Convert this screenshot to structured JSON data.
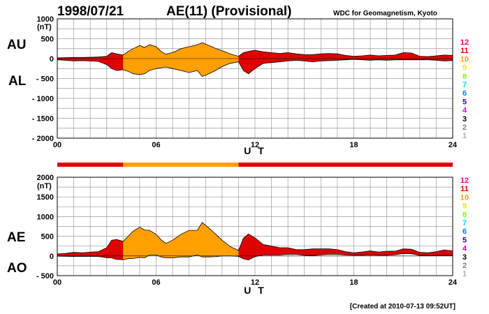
{
  "header": {
    "date": "1998/07/21",
    "title": "AE(11) (Provisional)",
    "source": "WDC for Geomagnetism, Kyoto"
  },
  "footer": {
    "created": "[Created at 2010-07-13 09:52UT]"
  },
  "legend_colors": {
    "12": "#ff0080",
    "11": "#e00000",
    "10": "#ffa000",
    "9": "#e8e800",
    "8": "#80ff00",
    "7": "#00e0e0",
    "6": "#0080ff",
    "5": "#3000c0",
    "4": "#e000e0",
    "3": "#000000",
    "2": "#808080",
    "1": "#b0b0b0"
  },
  "chart_data": [
    {
      "type": "area",
      "panel": "AU/AL",
      "labels": {
        "upper": "AU",
        "lower": "AL",
        "unit": "(nT)"
      },
      "xlabel": "U T",
      "xlim": [
        0,
        24
      ],
      "xticks": [
        "00",
        "06",
        "12",
        "18",
        "24"
      ],
      "ylim": [
        -2000,
        1000
      ],
      "yticks": [
        "1000",
        "500",
        "0",
        "- 500",
        "- 1000",
        "- 1500",
        "- 2000"
      ],
      "legend": [
        "12",
        "11",
        "10",
        "9",
        "8",
        "7",
        "6",
        "5",
        "4",
        "3",
        "2",
        "1"
      ],
      "series": [
        {
          "x": [
            0,
            0.5,
            1,
            1.5,
            2,
            2.5,
            3,
            3.3,
            3.6,
            4,
            4.3,
            4.6,
            5,
            5.3,
            5.6,
            6,
            6.3,
            6.6,
            7,
            7.5,
            8,
            8.5,
            8.8,
            9.2,
            9.6,
            10,
            10.5,
            11,
            11.3,
            11.6,
            12,
            12.5,
            13,
            13.5,
            14,
            14.5,
            15,
            15.5,
            16,
            16.5,
            17,
            17.5,
            18,
            18.5,
            19,
            19.5,
            20,
            20.5,
            21,
            21.5,
            22,
            22.5,
            23,
            23.5,
            24
          ],
          "upper": [
            20,
            25,
            30,
            30,
            35,
            40,
            60,
            150,
            120,
            90,
            180,
            250,
            330,
            280,
            350,
            300,
            180,
            110,
            150,
            250,
            300,
            350,
            400,
            330,
            260,
            200,
            120,
            60,
            150,
            180,
            210,
            170,
            150,
            130,
            150,
            120,
            100,
            100,
            120,
            130,
            120,
            80,
            60,
            70,
            90,
            70,
            80,
            90,
            150,
            140,
            60,
            50,
            70,
            90,
            80
          ],
          "lower": [
            -30,
            -40,
            -60,
            -50,
            -60,
            -70,
            -150,
            -250,
            -300,
            -280,
            -320,
            -380,
            -400,
            -380,
            -300,
            -250,
            -230,
            -210,
            -250,
            -300,
            -350,
            -300,
            -450,
            -380,
            -300,
            -200,
            -120,
            -80,
            -300,
            -380,
            -250,
            -120,
            -100,
            -80,
            -60,
            -40,
            -60,
            -80,
            -60,
            -50,
            -40,
            -30,
            -20,
            -30,
            -40,
            -30,
            -40,
            -30,
            -30,
            -30,
            -30,
            -30,
            -40,
            -60,
            -50
          ]
        }
      ]
    },
    {
      "type": "area",
      "panel": "AE/AO",
      "labels": {
        "upper": "AE",
        "lower": "AO",
        "unit": "(nT)"
      },
      "xlabel": "U T",
      "xlim": [
        0,
        24
      ],
      "xticks": [
        "00",
        "06",
        "12",
        "18",
        "24"
      ],
      "ylim": [
        -500,
        2000
      ],
      "yticks": [
        "2000",
        "1500",
        "1000",
        "500",
        "0",
        "- 500"
      ],
      "legend": [
        "12",
        "11",
        "10",
        "9",
        "8",
        "7",
        "6",
        "5",
        "4",
        "3",
        "2",
        "1"
      ],
      "series": [
        {
          "x": [
            0,
            0.5,
            1,
            1.5,
            2,
            2.5,
            3,
            3.3,
            3.6,
            4,
            4.3,
            4.6,
            5,
            5.3,
            5.6,
            6,
            6.3,
            6.6,
            7,
            7.5,
            8,
            8.5,
            8.8,
            9.2,
            9.6,
            10,
            10.5,
            11,
            11.3,
            11.6,
            12,
            12.5,
            13,
            13.5,
            14,
            14.5,
            15,
            15.5,
            16,
            16.5,
            17,
            17.5,
            18,
            18.5,
            19,
            19.5,
            20,
            20.5,
            21,
            21.5,
            22,
            22.5,
            23,
            23.5,
            24
          ],
          "upper": [
            50,
            65,
            90,
            80,
            95,
            110,
            210,
            400,
            420,
            370,
            500,
            630,
            730,
            660,
            650,
            550,
            410,
            320,
            400,
            550,
            650,
            650,
            850,
            710,
            560,
            400,
            240,
            140,
            450,
            560,
            460,
            290,
            250,
            210,
            210,
            160,
            160,
            180,
            180,
            180,
            160,
            110,
            80,
            100,
            130,
            100,
            120,
            120,
            180,
            170,
            90,
            80,
            110,
            150,
            130
          ],
          "lower": [
            -5,
            -8,
            -15,
            -10,
            -12,
            -15,
            -45,
            -50,
            -90,
            -95,
            -70,
            -65,
            -35,
            -50,
            25,
            25,
            -25,
            -50,
            -50,
            -25,
            -25,
            25,
            -25,
            -25,
            -20,
            0,
            0,
            -10,
            -75,
            -100,
            -20,
            25,
            25,
            25,
            45,
            40,
            20,
            10,
            30,
            40,
            40,
            25,
            20,
            20,
            25,
            20,
            20,
            30,
            60,
            55,
            15,
            10,
            15,
            15,
            15
          ]
        }
      ]
    }
  ],
  "status_bar": {
    "segments": [
      {
        "from": 0,
        "to": 4,
        "level": "11"
      },
      {
        "from": 4,
        "to": 11,
        "level": "10"
      },
      {
        "from": 11,
        "to": 24,
        "level": "11"
      }
    ]
  },
  "color_segments": [
    {
      "from": 0,
      "to": 4,
      "level": "11"
    },
    {
      "from": 4,
      "to": 11,
      "level": "10"
    },
    {
      "from": 11,
      "to": 24,
      "level": "11"
    }
  ]
}
